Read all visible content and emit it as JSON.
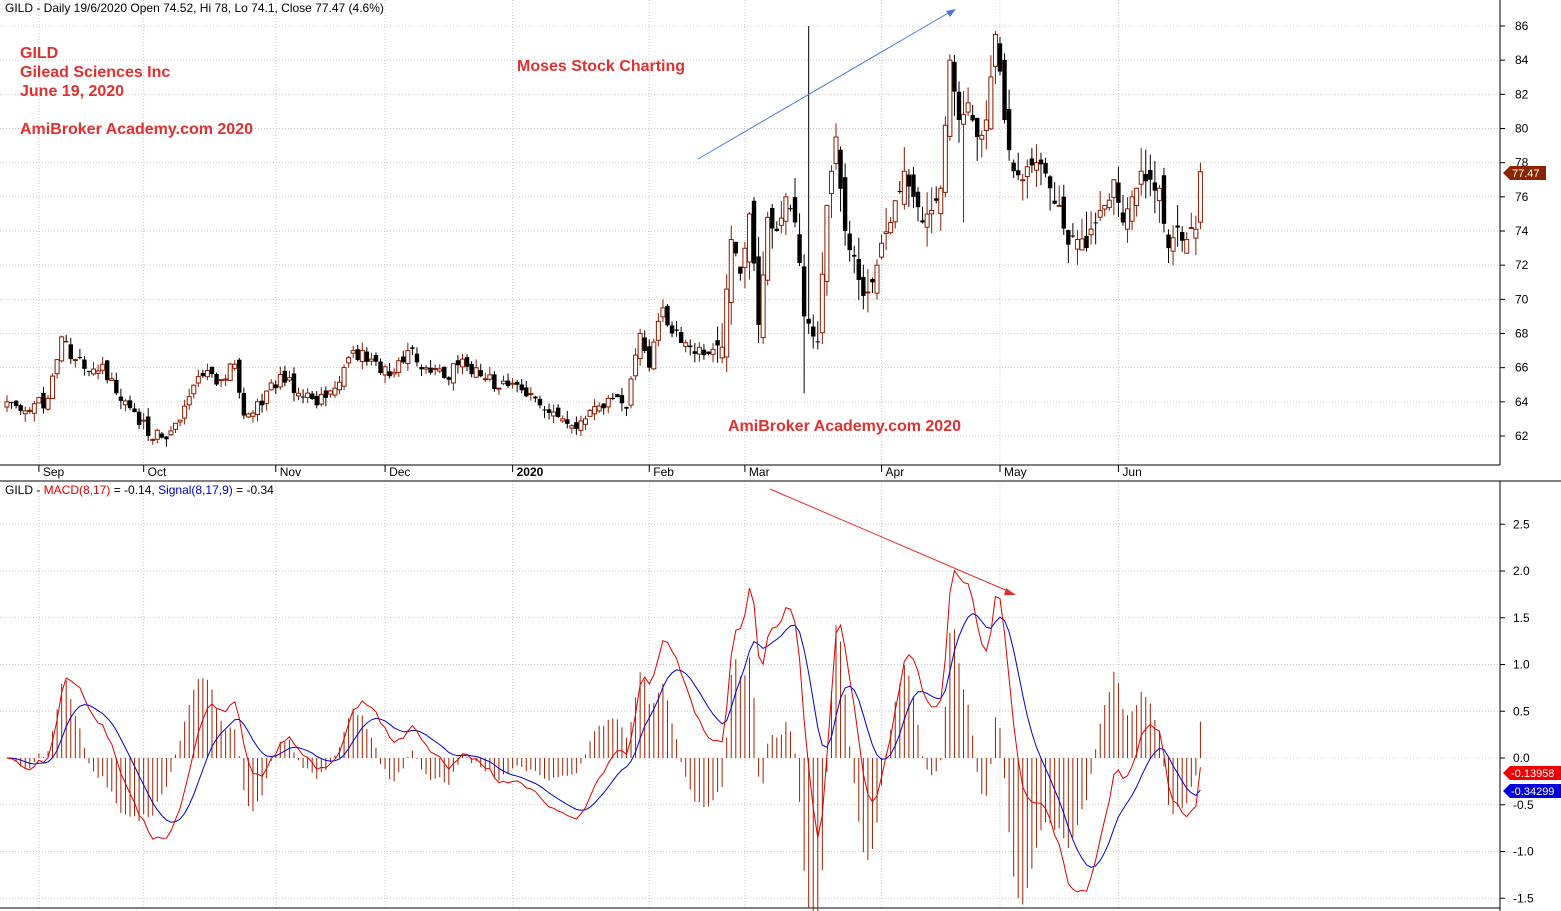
{
  "price_panel": {
    "header": "GILD - Daily 19/6/2020 Open 74.52, Hi 78, Lo 74.1, Close 77.47 (4.6%)",
    "annotations": {
      "ticker": "GILD",
      "company": "Gilead Sciences Inc",
      "date": "June 19, 2020",
      "site_top": "AmiBroker Academy.com  2020",
      "moses": "Moses Stock Charting",
      "site_bottom": "AmiBroker Academy.com   2020"
    },
    "last_price_label": "77.47"
  },
  "macd_panel": {
    "header_prefix": "GILD - ",
    "macd_name": "MACD(8,17)",
    "macd_value": " = -0.14, ",
    "signal_name": "Signal(8,17,9)",
    "signal_value": " = -0.34",
    "macd_label": "-0.13958",
    "signal_label": "-0.34299"
  },
  "months": [
    "Sep",
    "Oct",
    "Nov",
    "Dec",
    "2020",
    "Feb",
    "Mar",
    "Apr",
    "May",
    "Jun"
  ],
  "colors": {
    "up": "#8b1a00",
    "down": "#000000",
    "macd": "#dd0000",
    "signal": "#0000cc",
    "hist": "#a02000",
    "annotation": "#e03030",
    "trend_up": "#4a7ad6",
    "trend_down": "#e03030",
    "grid": "#c8c8c8"
  },
  "chart_data": [
    {
      "type": "candlestick",
      "title": "GILD - Daily 19/6/2020 Open 74.52, Hi 78, Lo 74.1, Close 77.47 (4.6%)",
      "y_ticks": [
        62,
        64,
        66,
        68,
        70,
        72,
        74,
        76,
        78,
        80,
        82,
        84,
        86
      ],
      "ylim": [
        60.2,
        87.6
      ],
      "x_ticks": [
        "Sep",
        "Oct",
        "Nov",
        "Dec",
        "2020",
        "Feb",
        "Mar",
        "Apr",
        "May",
        "Jun"
      ],
      "close_anchors": [
        [
          0,
          64
        ],
        [
          5,
          63.5
        ],
        [
          9,
          64.2
        ],
        [
          12,
          67.8
        ],
        [
          14,
          66.5
        ],
        [
          18,
          65.8
        ],
        [
          21,
          66.2
        ],
        [
          24,
          64.5
        ],
        [
          28,
          63.4
        ],
        [
          32,
          61.8
        ],
        [
          36,
          62.3
        ],
        [
          40,
          64.3
        ],
        [
          43,
          65.5
        ],
        [
          47,
          65.3
        ],
        [
          50,
          66.2
        ],
        [
          52,
          63.2
        ],
        [
          56,
          63.8
        ],
        [
          60,
          65.6
        ],
        [
          64,
          64.5
        ],
        [
          68,
          63.8
        ],
        [
          72,
          64.8
        ],
        [
          76,
          67
        ],
        [
          80,
          66.5
        ],
        [
          84,
          65.5
        ],
        [
          88,
          67
        ],
        [
          92,
          66
        ],
        [
          96,
          65.4
        ],
        [
          100,
          66.5
        ],
        [
          104,
          65.5
        ],
        [
          108,
          64.8
        ],
        [
          112,
          65
        ],
        [
          116,
          64.2
        ],
        [
          120,
          63.4
        ],
        [
          124,
          62.6
        ],
        [
          128,
          63.5
        ],
        [
          132,
          64.2
        ],
        [
          136,
          63.6
        ],
        [
          139,
          68
        ],
        [
          141,
          66
        ],
        [
          144,
          69.5
        ],
        [
          146,
          68
        ],
        [
          150,
          67.2
        ],
        [
          154,
          66.8
        ],
        [
          157,
          67.2
        ],
        [
          159,
          73.5
        ],
        [
          161,
          71.5
        ],
        [
          163,
          75
        ],
        [
          165,
          68.5
        ],
        [
          167,
          74.8
        ],
        [
          169,
          74
        ],
        [
          171,
          76
        ],
        [
          173,
          74.5
        ],
        [
          175,
          69
        ],
        [
          178,
          67.5
        ],
        [
          180,
          75.5
        ],
        [
          182,
          79.5
        ],
        [
          184,
          74
        ],
        [
          186,
          72.5
        ],
        [
          188,
          70.2
        ],
        [
          191,
          72
        ],
        [
          194,
          74.5
        ],
        [
          197,
          77.5
        ],
        [
          199,
          76
        ],
        [
          201,
          74.5
        ],
        [
          203,
          75.2
        ],
        [
          205,
          76.5
        ],
        [
          207,
          84
        ],
        [
          209,
          80.5
        ],
        [
          211,
          81.5
        ],
        [
          213,
          79.5
        ],
        [
          215,
          80.5
        ],
        [
          217,
          85.5
        ],
        [
          219,
          80.5
        ],
        [
          221,
          77.5
        ],
        [
          223,
          77
        ],
        [
          226,
          78
        ],
        [
          229,
          76.5
        ],
        [
          231,
          75.5
        ],
        [
          233,
          73.2
        ],
        [
          235,
          73.5
        ],
        [
          237,
          73
        ],
        [
          239,
          74.5
        ],
        [
          241,
          75.5
        ],
        [
          243,
          77
        ],
        [
          245,
          74.5
        ],
        [
          247,
          76
        ],
        [
          249,
          77.5
        ],
        [
          251,
          77
        ],
        [
          253,
          76.5
        ],
        [
          255,
          73
        ],
        [
          257,
          74.2
        ],
        [
          259,
          73.5
        ],
        [
          261,
          74.1
        ],
        [
          262,
          77.47
        ]
      ]
    },
    {
      "type": "line",
      "title": "GILD - MACD(8,17) = -0.14, Signal(8,17,9) = -0.34",
      "y_ticks": [
        -1.5,
        -1.0,
        -0.5,
        0.0,
        0.5,
        1.0,
        1.5,
        2.0,
        2.5
      ],
      "ylim": [
        -1.55,
        2.9
      ],
      "series": [
        {
          "name": "MACD(8,17)",
          "last": -0.13958
        },
        {
          "name": "Signal(8,17,9)",
          "last": -0.34299
        }
      ]
    }
  ]
}
